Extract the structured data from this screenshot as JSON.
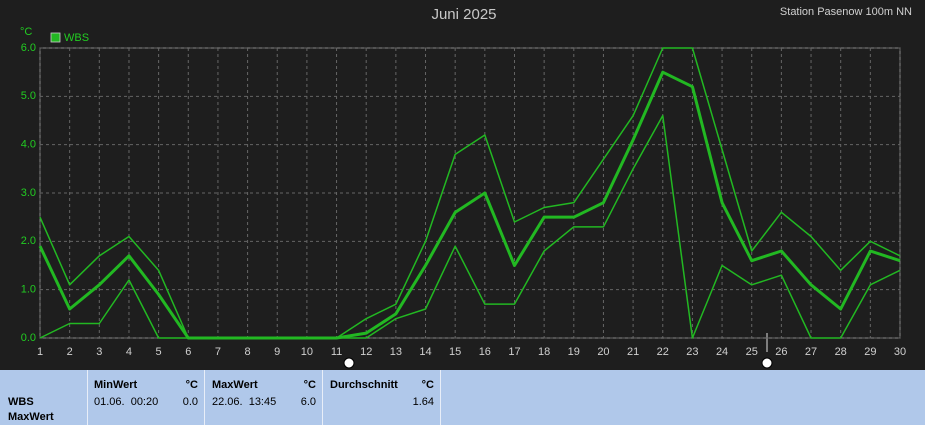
{
  "chart_data": {
    "type": "line",
    "title": "Juni 2025",
    "subtitle": "Station Pasenow 100m NN",
    "y_label": "°C",
    "legend": "WBS",
    "x": [
      1,
      2,
      3,
      4,
      5,
      6,
      7,
      8,
      9,
      10,
      11,
      12,
      13,
      14,
      15,
      16,
      17,
      18,
      19,
      20,
      21,
      22,
      23,
      24,
      25,
      26,
      27,
      28,
      29,
      30
    ],
    "series": [
      {
        "color": "#22b822",
        "line_width": 1.5,
        "values": [
          2.5,
          1.1,
          1.7,
          2.1,
          1.4,
          0,
          0,
          0,
          0,
          0,
          0,
          0.4,
          0.7,
          2.0,
          3.8,
          4.2,
          2.4,
          2.7,
          2.8,
          3.7,
          4.6,
          6.0,
          6.0,
          3.9,
          1.8,
          2.6,
          2.1,
          1.4,
          2.0,
          1.7
        ]
      },
      {
        "color": "#22b822",
        "line_width": 3,
        "values": [
          1.9,
          0.6,
          1.1,
          1.7,
          0.9,
          0,
          0,
          0,
          0,
          0,
          0,
          0.1,
          0.5,
          1.5,
          2.6,
          3.0,
          1.5,
          2.5,
          2.5,
          2.8,
          4.1,
          5.5,
          5.2,
          2.8,
          1.6,
          1.8,
          1.1,
          0.6,
          1.8,
          1.6
        ]
      },
      {
        "color": "#22b822",
        "line_width": 1.5,
        "values": [
          0,
          0.3,
          0.3,
          1.2,
          0,
          0,
          0,
          0,
          0,
          0,
          0,
          0,
          0.4,
          0.6,
          1.9,
          0.7,
          0.7,
          1.8,
          2.3,
          2.3,
          3.5,
          4.6,
          0,
          1.5,
          1.1,
          1.3,
          0,
          0,
          1.1,
          1.4
        ]
      }
    ],
    "xlim": [
      1,
      30
    ],
    "xticks": [
      1,
      2,
      3,
      4,
      5,
      6,
      7,
      8,
      9,
      10,
      11,
      12,
      13,
      14,
      15,
      16,
      17,
      18,
      19,
      20,
      21,
      22,
      23,
      24,
      25,
      26,
      27,
      28,
      29,
      30
    ],
    "ylim": [
      0,
      6
    ],
    "yticks": [
      {
        "value": 0,
        "label": "0.0"
      },
      {
        "value": 1,
        "label": "1.0"
      },
      {
        "value": 2,
        "label": "2.0"
      },
      {
        "value": 3,
        "label": "3.0"
      },
      {
        "value": 4,
        "label": "4.0"
      },
      {
        "value": 5,
        "label": "5.0"
      },
      {
        "value": 6,
        "label": "6.0"
      }
    ],
    "grid": true
  },
  "summary": {
    "sensor": "WBS",
    "row": "MaxWert",
    "min": {
      "header": "MinWert",
      "unit": "°C",
      "time": "01.06.  00:20",
      "value": "0.0"
    },
    "max": {
      "header": "MaxWert",
      "unit": "°C",
      "time": "22.06.  13:45",
      "value": "6.0"
    },
    "avg": {
      "header": "Durchschnitt",
      "unit": "°C",
      "value": "1.64"
    }
  }
}
